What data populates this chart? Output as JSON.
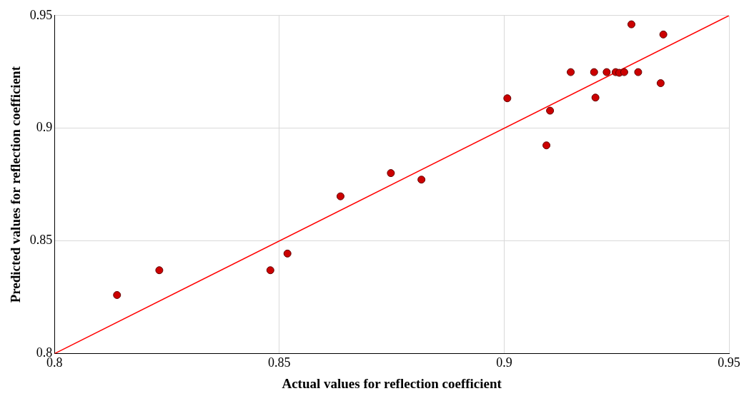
{
  "chart_data": {
    "type": "scatter",
    "xlabel": "Actual values for reflection coefficient",
    "ylabel": "Predicted values for reflection coefficient",
    "xlim": [
      0.8,
      0.95
    ],
    "xticks": [
      0.8,
      0.85,
      0.9,
      0.95
    ],
    "ylim": [
      0.8,
      0.95
    ],
    "yticks": [
      0.8,
      0.85,
      0.9,
      0.95
    ],
    "grid": true,
    "legend": false,
    "series": [
      {
        "marker": "circle",
        "color": "#cc0000",
        "x": [
          0.8139,
          0.8233,
          0.848,
          0.8518,
          0.8636,
          0.8748,
          0.8816,
          0.9007,
          0.9094,
          0.9102,
          0.9148,
          0.92,
          0.9203,
          0.9228,
          0.9248,
          0.9256,
          0.9267,
          0.9283,
          0.9298,
          0.9348,
          0.9354
        ],
        "values": [
          0.826,
          0.837,
          0.837,
          0.8444,
          0.8698,
          0.8801,
          0.8772,
          0.9133,
          0.8924,
          0.9078,
          0.9249,
          0.9249,
          0.9136,
          0.9249,
          0.9249,
          0.9246,
          0.9249,
          0.9461,
          0.9249,
          0.92,
          0.9416
        ]
      },
      {
        "type": "line",
        "color": "#ff0000",
        "x": [
          0.8,
          0.95
        ],
        "values": [
          0.8,
          0.95
        ]
      }
    ]
  }
}
